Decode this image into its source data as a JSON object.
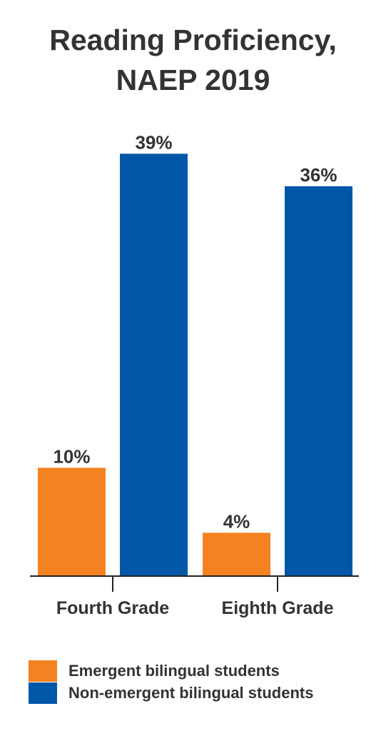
{
  "chart_data": {
    "type": "bar",
    "title": "Reading Proficiency,",
    "subtitle": "NAEP 2019",
    "categories": [
      "Fourth Grade",
      "Eighth Grade"
    ],
    "series": [
      {
        "name": "Emergent bilingual students",
        "color": "#f58220",
        "values": [
          10,
          4
        ],
        "labels": [
          "10%",
          "4%"
        ]
      },
      {
        "name": "Non-emergent bilingual students",
        "color": "#0057a8",
        "values": [
          39,
          36
        ],
        "labels": [
          "39%",
          "36%"
        ]
      }
    ],
    "xlabel": "",
    "ylabel": "",
    "ylim": [
      0,
      45
    ],
    "grid": false,
    "legend_position": "bottom-left"
  }
}
